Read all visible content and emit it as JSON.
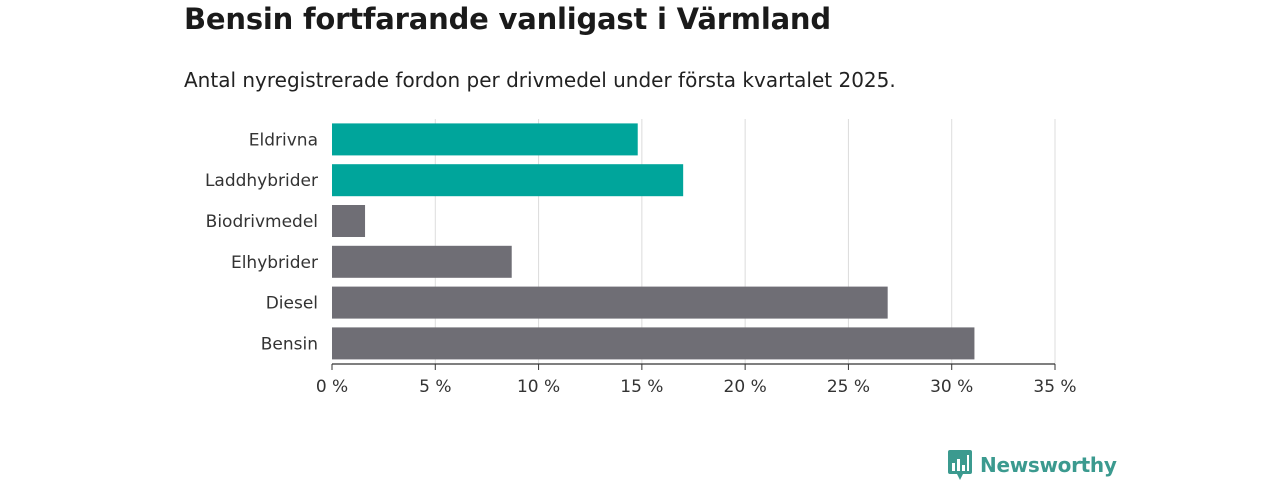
{
  "chart_data": {
    "type": "bar",
    "orientation": "horizontal",
    "title": "Bensin fortfarande vanligast i Värmland",
    "subtitle": "Antal nyregistrerade fordon per drivmedel under första kvartalet 2025.",
    "categories": [
      "Eldrivna",
      "Laddhybrider",
      "Biodrivmedel",
      "Elhybrider",
      "Diesel",
      "Bensin"
    ],
    "values": [
      14.8,
      17.0,
      1.6,
      8.7,
      26.9,
      31.1
    ],
    "colors": [
      "#00a59b",
      "#00a59b",
      "#6f6e75",
      "#6f6e75",
      "#6f6e75",
      "#6f6e75"
    ],
    "xlim": [
      0,
      35
    ],
    "xticks": [
      0,
      5,
      10,
      15,
      20,
      25,
      30,
      35
    ],
    "tick_suffix": " %",
    "grid": true
  },
  "brand": {
    "name": "Newsworthy",
    "color": "#3b9a8f",
    "icon": "bar-chart-speech-bubble-icon"
  }
}
